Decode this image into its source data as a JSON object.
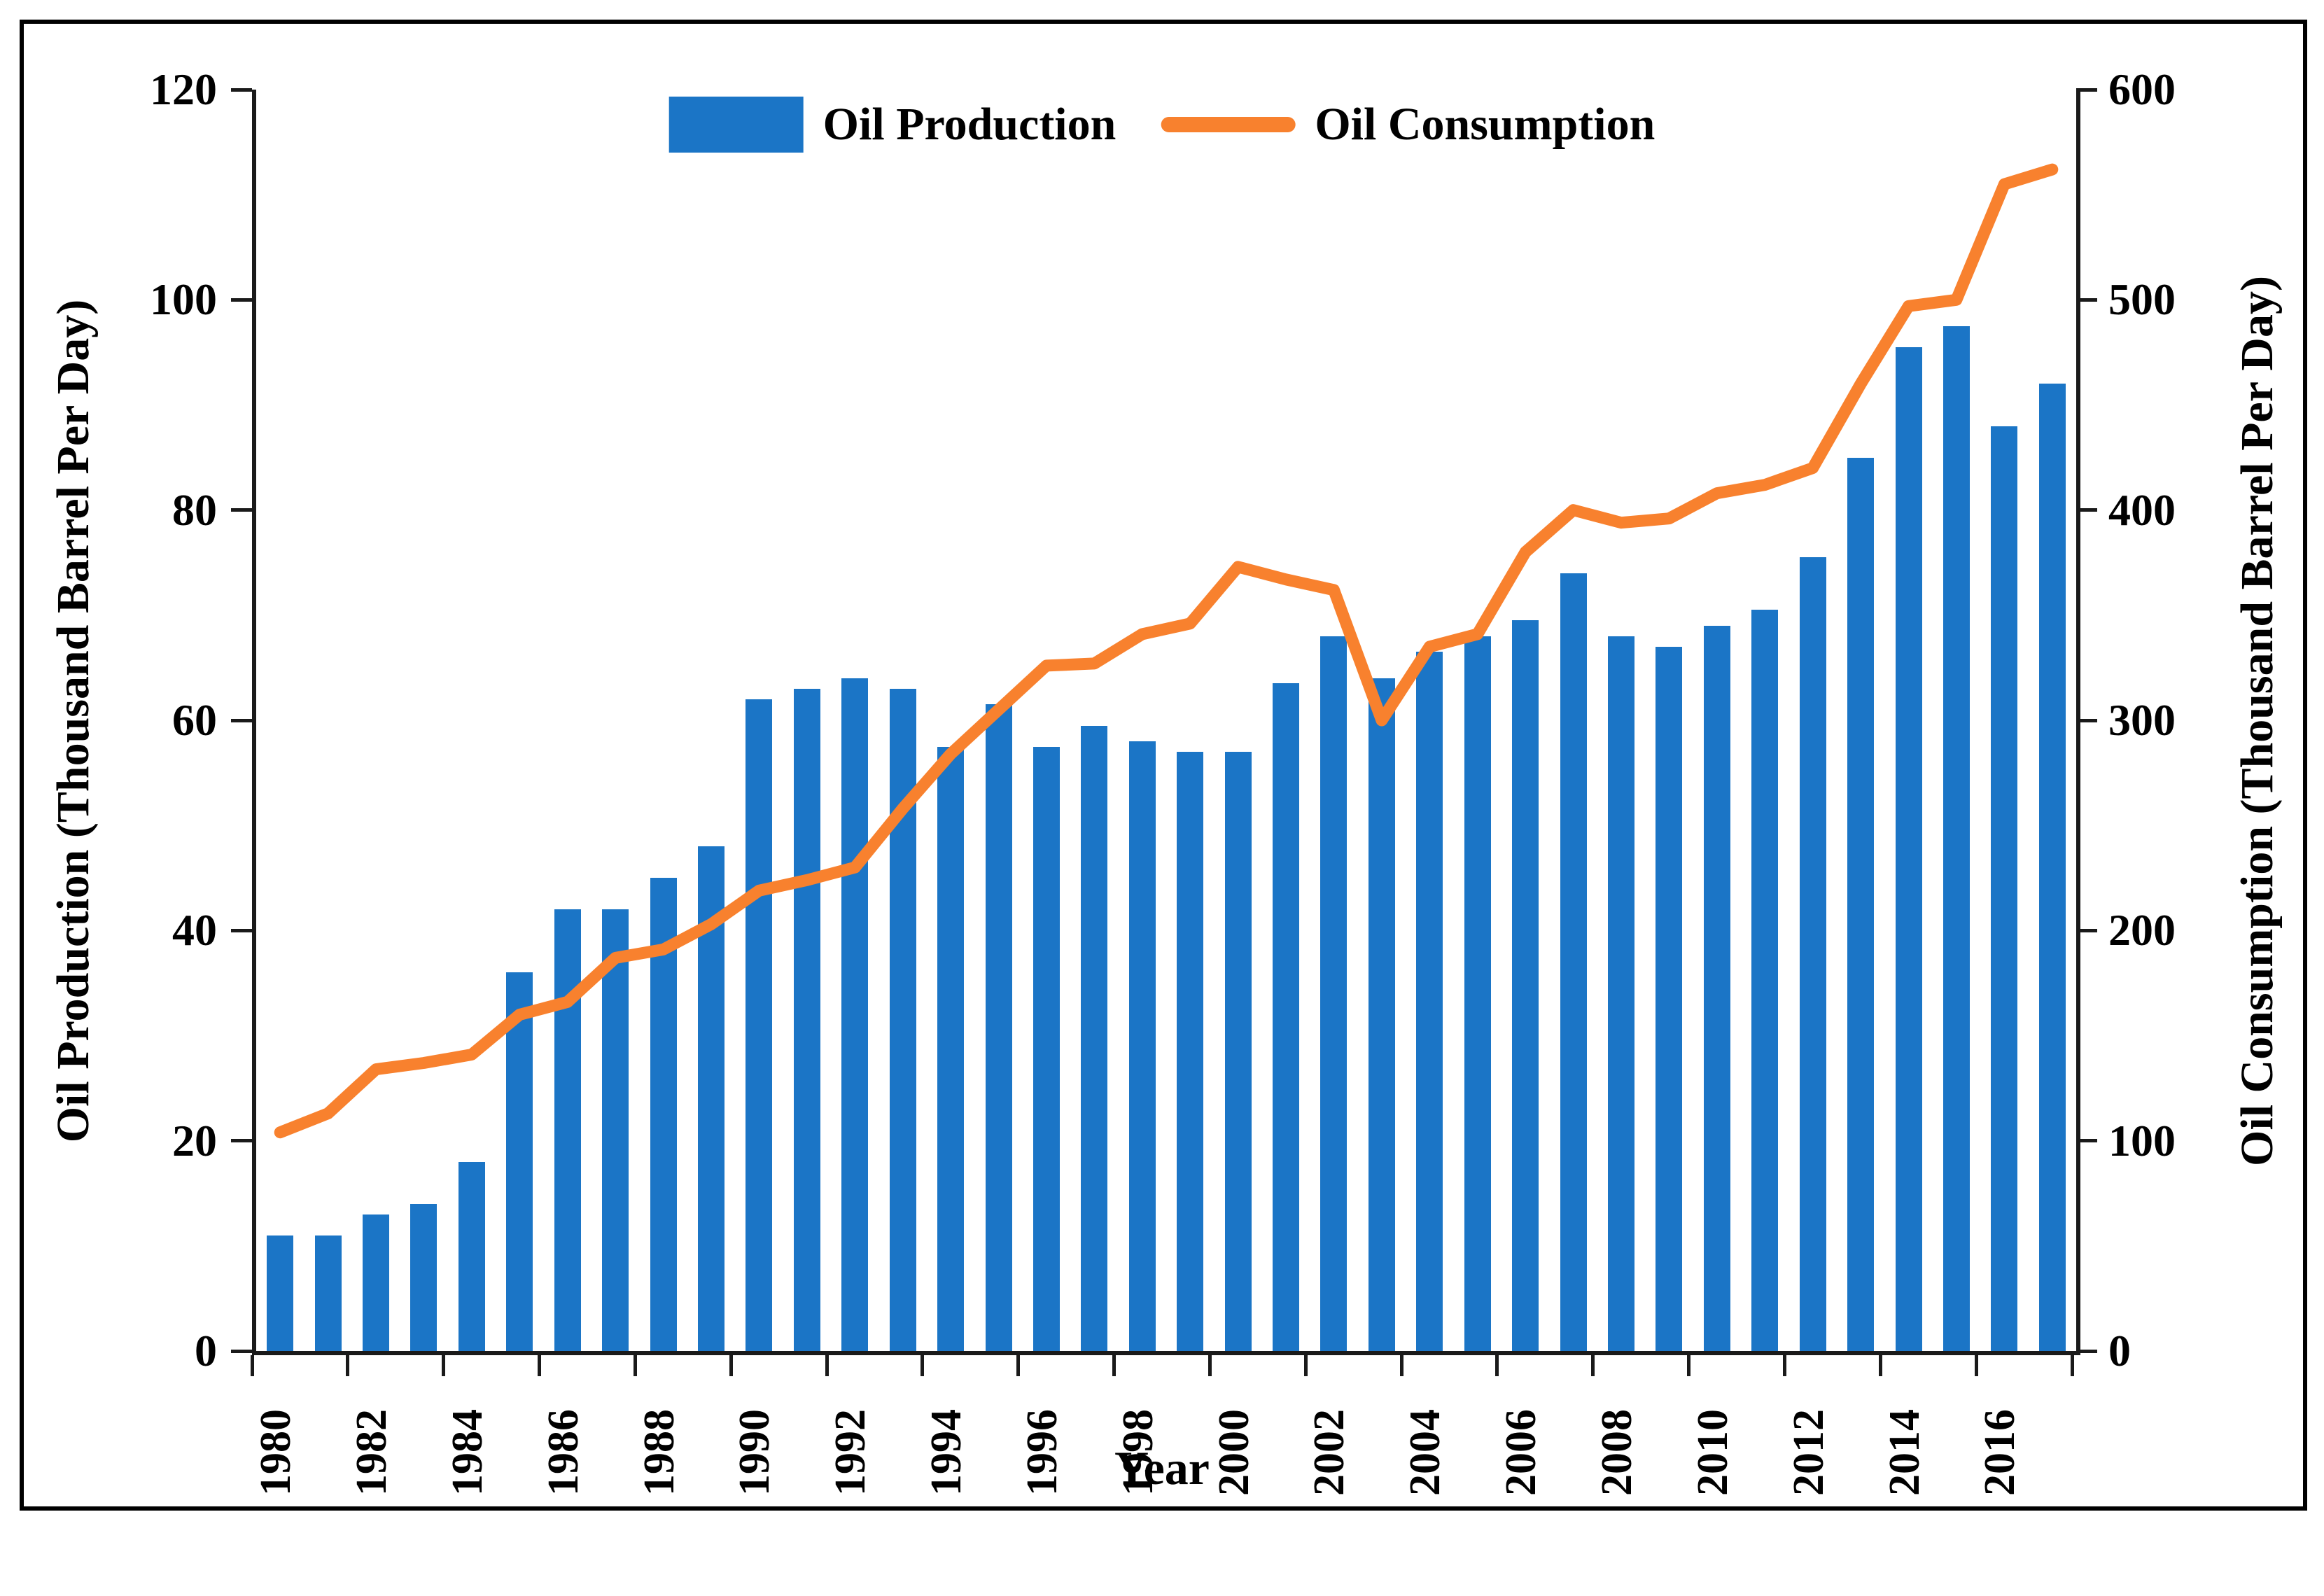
{
  "legend": {
    "production_label": "Oil Production",
    "consumption_label": "Oil Consumption"
  },
  "axes": {
    "left_title": "Oil Production (Thousand Barrel Per Day)",
    "right_title": "Oil Consumption (Thousand Barrel Per Day)",
    "x_title": "Year",
    "left_ticks": [
      0,
      20,
      40,
      60,
      80,
      100,
      120
    ],
    "right_ticks": [
      0,
      100,
      200,
      300,
      400,
      500,
      600
    ],
    "x_label_interval": 2
  },
  "colors": {
    "bar": "#1B75C6",
    "line": "#F8812E",
    "axis": "#1a1a1a",
    "frame": "#000000"
  },
  "chart_data": {
    "type": "bar",
    "subtype": "bar+line dual axis",
    "title": "",
    "xlabel": "Year",
    "ylabel_left": "Oil Production (Thousand Barrel Per Day)",
    "ylabel_right": "Oil Consumption (Thousand Barrel Per Day)",
    "ylim_left": [
      0,
      120
    ],
    "ylim_right": [
      0,
      600
    ],
    "grid": false,
    "legend_position": "top-center",
    "categories": [
      1980,
      1981,
      1982,
      1983,
      1984,
      1985,
      1986,
      1987,
      1988,
      1989,
      1990,
      1991,
      1992,
      1993,
      1994,
      1995,
      1996,
      1997,
      1998,
      1999,
      2000,
      2001,
      2002,
      2003,
      2004,
      2005,
      2006,
      2007,
      2008,
      2009,
      2010,
      2011,
      2012,
      2013,
      2014,
      2015,
      2016,
      2017
    ],
    "series": [
      {
        "name": "Oil Production",
        "type": "bar",
        "axis": "left",
        "values": [
          11,
          11,
          13,
          14,
          18,
          36,
          42,
          42,
          45,
          48,
          62,
          63,
          64,
          63,
          57.5,
          61.5,
          57.5,
          59.5,
          58,
          57,
          57,
          63.5,
          68,
          64,
          66.5,
          68,
          69.5,
          74,
          68,
          67,
          69,
          70.5,
          75.5,
          85,
          95.5,
          97.5,
          88,
          92
        ]
      },
      {
        "name": "Oil Consumption",
        "type": "line",
        "axis": "right",
        "values": [
          104,
          113,
          134,
          137,
          141,
          160,
          166,
          187,
          191,
          203,
          219,
          224,
          230,
          258,
          284,
          305,
          326,
          327,
          341,
          346,
          373,
          367,
          362,
          300,
          335,
          341,
          380,
          400,
          394,
          396,
          408,
          412,
          420,
          460,
          497,
          500,
          555,
          562
        ]
      }
    ]
  }
}
